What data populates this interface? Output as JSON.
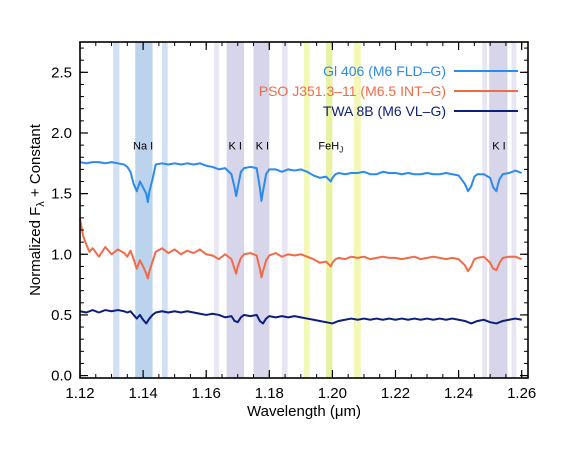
{
  "chart_data": {
    "type": "line",
    "xlabel": "Wavelength (μm)",
    "ylabel_parts": {
      "main": "Normalized F",
      "subscript": "λ",
      "tail": " + Constant"
    },
    "xlim": [
      1.12,
      1.262
    ],
    "ylim": [
      -0.02,
      2.75
    ],
    "x_ticks": [
      "1.12",
      "1.14",
      "1.16",
      "1.18",
      "1.20",
      "1.22",
      "1.24",
      "1.26"
    ],
    "y_ticks": [
      "0.0",
      "0.5",
      "1.0",
      "1.5",
      "2.0",
      "2.5"
    ],
    "bands": [
      {
        "x0": 1.1305,
        "x1": 1.1325,
        "color": "#d2e0f5"
      },
      {
        "x0": 1.1375,
        "x1": 1.143,
        "color": "#bcd3ee"
      },
      {
        "x0": 1.146,
        "x1": 1.1478,
        "color": "#d2e0f5"
      },
      {
        "x0": 1.1625,
        "x1": 1.164,
        "color": "#e7e6f2"
      },
      {
        "x0": 1.1665,
        "x1": 1.172,
        "color": "#d7d5e9"
      },
      {
        "x0": 1.175,
        "x1": 1.18,
        "color": "#d7d5e9"
      },
      {
        "x0": 1.184,
        "x1": 1.1858,
        "color": "#e7e6f2"
      },
      {
        "x0": 1.191,
        "x1": 1.1928,
        "color": "#f3f7b7"
      },
      {
        "x0": 1.198,
        "x1": 1.2,
        "color": "#e9f2a2"
      },
      {
        "x0": 1.2068,
        "x1": 1.209,
        "color": "#f3f7b7"
      },
      {
        "x0": 1.2475,
        "x1": 1.249,
        "color": "#e7e6f2"
      },
      {
        "x0": 1.2497,
        "x1": 1.2555,
        "color": "#d7d5e9"
      },
      {
        "x0": 1.2568,
        "x1": 1.2583,
        "color": "#e7e6f2"
      }
    ],
    "annotations": [
      {
        "text": "Na I",
        "x": 1.14,
        "y": 1.865
      },
      {
        "text": "K I",
        "x": 1.1692,
        "y": 1.865
      },
      {
        "text": "K I",
        "x": 1.1778,
        "y": 1.865
      },
      {
        "text": "FeH",
        "sub": "J",
        "x": 1.1995,
        "y": 1.865
      },
      {
        "text": "K I",
        "x": 1.2528,
        "y": 1.865
      }
    ],
    "series": [
      {
        "name": "Gl 406 (M6 FLD–G)",
        "color": "#2b8aee",
        "x": [
          1.12,
          1.122,
          1.124,
          1.126,
          1.128,
          1.13,
          1.132,
          1.134,
          1.135,
          1.136,
          1.137,
          1.138,
          1.139,
          1.14,
          1.141,
          1.1415,
          1.142,
          1.143,
          1.144,
          1.146,
          1.148,
          1.15,
          1.152,
          1.154,
          1.156,
          1.158,
          1.16,
          1.162,
          1.164,
          1.166,
          1.168,
          1.169,
          1.1695,
          1.17,
          1.171,
          1.172,
          1.174,
          1.176,
          1.177,
          1.1775,
          1.178,
          1.179,
          1.18,
          1.182,
          1.184,
          1.186,
          1.188,
          1.19,
          1.192,
          1.194,
          1.196,
          1.198,
          1.1995,
          1.2,
          1.201,
          1.202,
          1.204,
          1.206,
          1.208,
          1.21,
          1.212,
          1.214,
          1.216,
          1.218,
          1.22,
          1.222,
          1.224,
          1.226,
          1.228,
          1.23,
          1.232,
          1.234,
          1.236,
          1.238,
          1.24,
          1.242,
          1.243,
          1.244,
          1.245,
          1.246,
          1.248,
          1.25,
          1.251,
          1.252,
          1.2525,
          1.253,
          1.254,
          1.256,
          1.258,
          1.26
        ],
        "values": [
          1.76,
          1.75,
          1.76,
          1.76,
          1.75,
          1.76,
          1.75,
          1.74,
          1.72,
          1.68,
          1.58,
          1.52,
          1.6,
          1.55,
          1.5,
          1.43,
          1.52,
          1.62,
          1.74,
          1.75,
          1.74,
          1.75,
          1.74,
          1.75,
          1.74,
          1.75,
          1.73,
          1.72,
          1.7,
          1.71,
          1.66,
          1.55,
          1.48,
          1.55,
          1.68,
          1.71,
          1.72,
          1.71,
          1.55,
          1.44,
          1.52,
          1.66,
          1.7,
          1.7,
          1.68,
          1.7,
          1.69,
          1.7,
          1.68,
          1.65,
          1.63,
          1.64,
          1.6,
          1.63,
          1.66,
          1.67,
          1.66,
          1.67,
          1.67,
          1.68,
          1.66,
          1.66,
          1.68,
          1.67,
          1.67,
          1.66,
          1.67,
          1.66,
          1.66,
          1.67,
          1.66,
          1.66,
          1.67,
          1.66,
          1.65,
          1.58,
          1.52,
          1.56,
          1.64,
          1.66,
          1.66,
          1.63,
          1.55,
          1.52,
          1.58,
          1.62,
          1.66,
          1.67,
          1.69,
          1.67
        ]
      },
      {
        "name": "PSO J351.3–11 (M6.5 INT–G)",
        "color": "#f26b47",
        "x": [
          1.12,
          1.121,
          1.122,
          1.123,
          1.124,
          1.126,
          1.128,
          1.13,
          1.132,
          1.134,
          1.135,
          1.136,
          1.137,
          1.138,
          1.139,
          1.14,
          1.141,
          1.1415,
          1.142,
          1.143,
          1.144,
          1.146,
          1.148,
          1.15,
          1.152,
          1.154,
          1.156,
          1.158,
          1.16,
          1.162,
          1.164,
          1.166,
          1.168,
          1.169,
          1.1695,
          1.17,
          1.171,
          1.172,
          1.174,
          1.176,
          1.177,
          1.1775,
          1.178,
          1.179,
          1.18,
          1.182,
          1.184,
          1.186,
          1.188,
          1.19,
          1.192,
          1.194,
          1.196,
          1.198,
          1.1995,
          1.2,
          1.201,
          1.202,
          1.204,
          1.206,
          1.208,
          1.21,
          1.212,
          1.214,
          1.216,
          1.218,
          1.22,
          1.222,
          1.224,
          1.226,
          1.228,
          1.23,
          1.232,
          1.234,
          1.236,
          1.238,
          1.24,
          1.242,
          1.243,
          1.244,
          1.245,
          1.246,
          1.248,
          1.25,
          1.251,
          1.252,
          1.2525,
          1.253,
          1.254,
          1.256,
          1.258,
          1.26
        ],
        "values": [
          1.29,
          1.15,
          1.08,
          1.02,
          1.05,
          0.98,
          1.06,
          1.0,
          1.04,
          1.01,
          0.98,
          1.03,
          0.96,
          0.88,
          0.95,
          0.9,
          0.84,
          0.8,
          0.86,
          0.94,
          1.02,
          1.05,
          1.01,
          1.04,
          1.0,
          1.03,
          1.01,
          1.04,
          1.0,
          0.99,
          0.96,
          1.0,
          0.96,
          0.88,
          0.84,
          0.9,
          0.97,
          1.0,
          1.01,
          0.99,
          0.88,
          0.81,
          0.86,
          0.95,
          0.99,
          1.01,
          0.98,
          1.0,
          0.99,
          1.0,
          0.98,
          0.96,
          0.93,
          0.94,
          0.9,
          0.93,
          0.96,
          0.97,
          0.96,
          0.98,
          0.97,
          0.98,
          0.96,
          0.97,
          0.98,
          0.97,
          0.97,
          0.96,
          0.97,
          0.98,
          0.96,
          0.97,
          0.98,
          0.97,
          0.96,
          0.97,
          0.96,
          0.91,
          0.86,
          0.9,
          0.96,
          0.97,
          0.98,
          0.93,
          0.88,
          0.87,
          0.9,
          0.93,
          0.97,
          0.98,
          0.98,
          0.96
        ]
      },
      {
        "name": "TWA 8B (M6 VL–G)",
        "color": "#0c1f7a",
        "x": [
          1.12,
          1.122,
          1.124,
          1.126,
          1.128,
          1.13,
          1.132,
          1.134,
          1.135,
          1.136,
          1.137,
          1.138,
          1.139,
          1.14,
          1.141,
          1.142,
          1.143,
          1.144,
          1.146,
          1.148,
          1.15,
          1.152,
          1.154,
          1.156,
          1.158,
          1.16,
          1.162,
          1.164,
          1.166,
          1.168,
          1.169,
          1.17,
          1.171,
          1.172,
          1.174,
          1.176,
          1.177,
          1.178,
          1.179,
          1.18,
          1.182,
          1.184,
          1.186,
          1.188,
          1.19,
          1.192,
          1.194,
          1.196,
          1.198,
          1.2,
          1.202,
          1.204,
          1.206,
          1.208,
          1.21,
          1.212,
          1.214,
          1.216,
          1.218,
          1.22,
          1.222,
          1.224,
          1.226,
          1.228,
          1.23,
          1.232,
          1.234,
          1.236,
          1.238,
          1.24,
          1.242,
          1.244,
          1.246,
          1.248,
          1.25,
          1.252,
          1.254,
          1.256,
          1.258,
          1.26
        ],
        "values": [
          0.53,
          0.52,
          0.54,
          0.52,
          0.54,
          0.53,
          0.54,
          0.53,
          0.52,
          0.53,
          0.5,
          0.47,
          0.5,
          0.46,
          0.43,
          0.47,
          0.5,
          0.52,
          0.53,
          0.52,
          0.53,
          0.52,
          0.53,
          0.52,
          0.51,
          0.5,
          0.51,
          0.5,
          0.48,
          0.49,
          0.45,
          0.44,
          0.48,
          0.5,
          0.49,
          0.5,
          0.45,
          0.43,
          0.47,
          0.49,
          0.48,
          0.49,
          0.48,
          0.49,
          0.48,
          0.47,
          0.46,
          0.45,
          0.44,
          0.43,
          0.45,
          0.46,
          0.47,
          0.46,
          0.47,
          0.46,
          0.47,
          0.46,
          0.47,
          0.46,
          0.47,
          0.46,
          0.47,
          0.46,
          0.47,
          0.46,
          0.47,
          0.46,
          0.47,
          0.46,
          0.45,
          0.43,
          0.45,
          0.46,
          0.44,
          0.43,
          0.45,
          0.46,
          0.47,
          0.46
        ]
      }
    ],
    "legend_position": "top-right"
  }
}
